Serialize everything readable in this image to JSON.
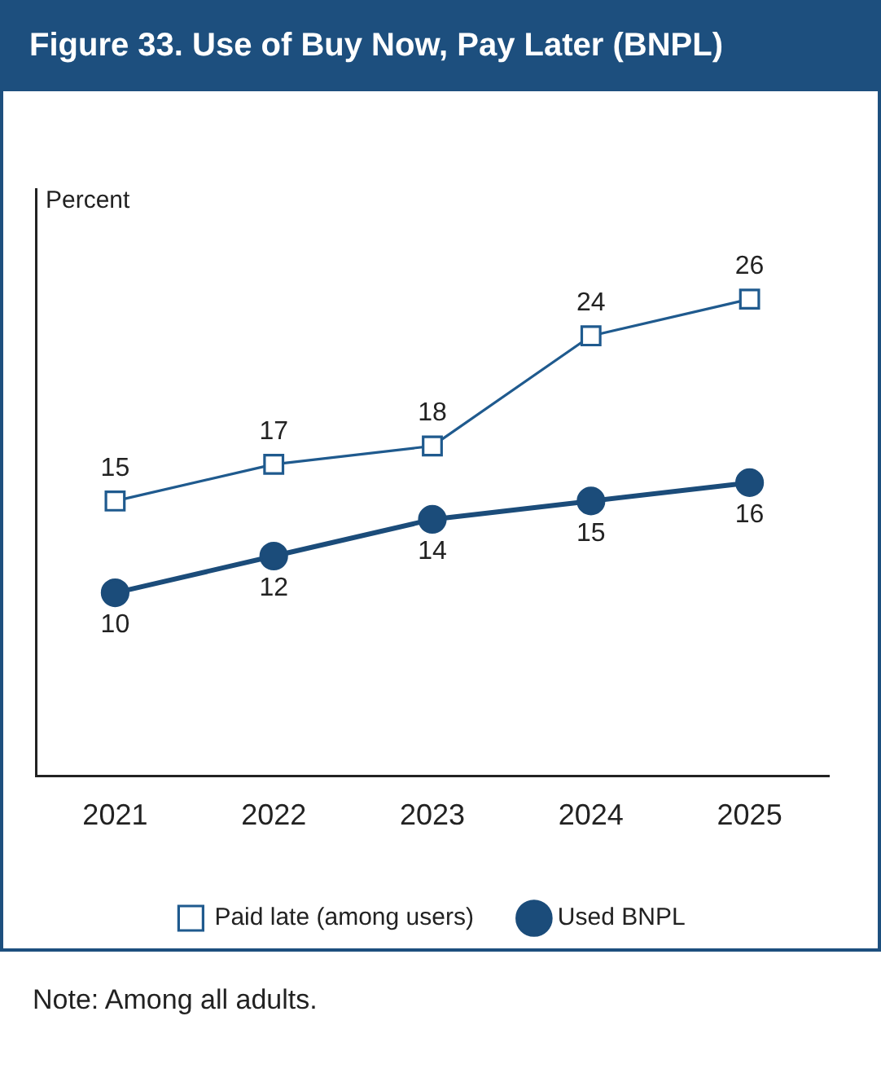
{
  "chart_data": {
    "type": "line",
    "title": "Figure 33. Use of Buy Now, Pay Later (BNPL)",
    "ylabel": "Percent",
    "categories": [
      "2021",
      "2022",
      "2023",
      "2024",
      "2025"
    ],
    "series": [
      {
        "name": "Paid late (among users)",
        "color": "#1f5a8e",
        "marker": "square",
        "values": [
          15,
          17,
          18,
          24,
          26
        ]
      },
      {
        "name": "Used BNPL",
        "color": "#1b4c7a",
        "marker": "circle",
        "values": [
          10,
          12,
          14,
          15,
          16
        ]
      }
    ],
    "ylim": [
      0,
      32
    ],
    "data_labels": true,
    "legend": "bottom",
    "grid": false,
    "line_style": "solid",
    "annotations": [
      "Note: Among all adults."
    ]
  }
}
